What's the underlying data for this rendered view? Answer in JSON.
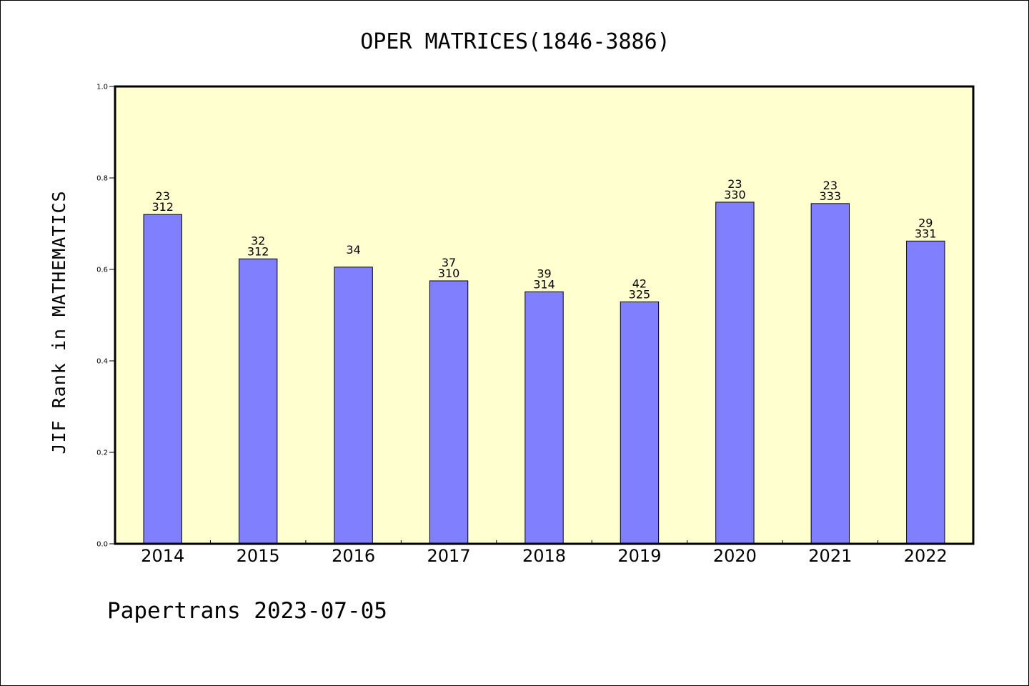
{
  "chart_data": {
    "type": "bar",
    "title": "OPER MATRICES(1846-3886)",
    "xlabel": "",
    "ylabel": "JIF Rank in MATHEMATICS",
    "ylim": [
      0,
      1.0
    ],
    "yticks": [
      "0.0",
      "0.2",
      "0.4",
      "0.6",
      "0.8",
      "1.0"
    ],
    "grid": false,
    "categories": [
      "2014",
      "2015",
      "2016",
      "2017",
      "2018",
      "2019",
      "2020",
      "2021",
      "2022"
    ],
    "values": [
      0.72,
      0.623,
      0.605,
      0.575,
      0.551,
      0.529,
      0.747,
      0.744,
      0.662
    ],
    "rank": [
      "23",
      "32",
      "34",
      "37",
      "39",
      "42",
      "23",
      "23",
      "29"
    ],
    "total": [
      "312",
      "312",
      "",
      "310",
      "314",
      "325",
      "330",
      "333",
      "331"
    ],
    "bar_color": "#8080ff",
    "plot_bg": "#ffffd0"
  },
  "footer": "Papertrans 2023-07-05"
}
